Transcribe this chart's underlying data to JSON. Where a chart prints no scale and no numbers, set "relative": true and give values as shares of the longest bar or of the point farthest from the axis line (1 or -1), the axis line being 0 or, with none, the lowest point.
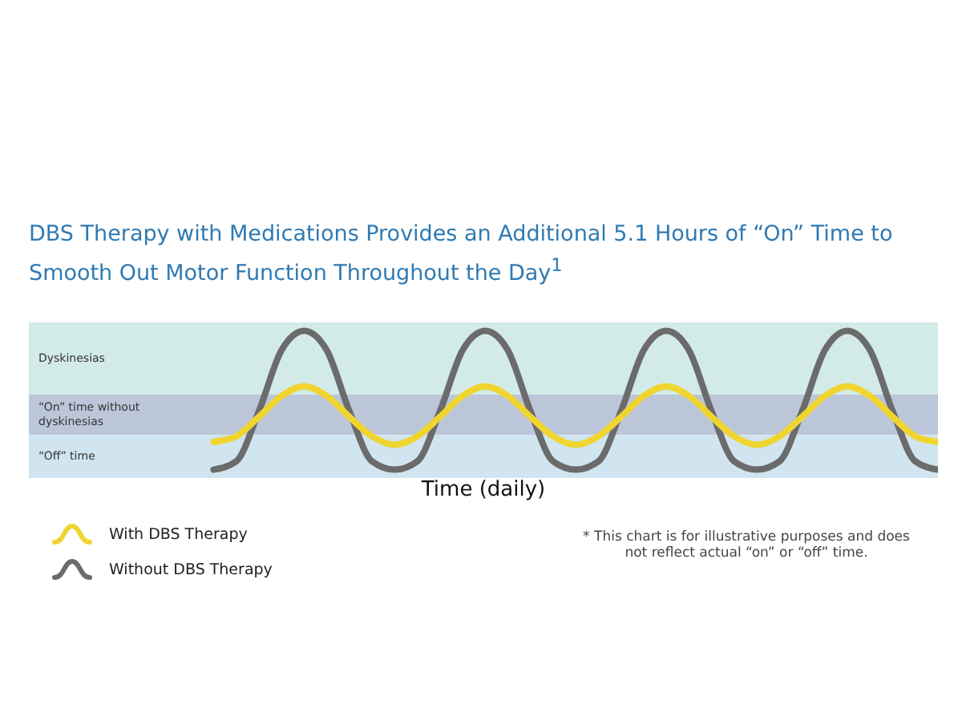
{
  "chart_data": {
    "type": "line",
    "title": "DBS Therapy with Medications Provides an Additional 5.1 Hours of “On” Time to Smooth Out Motor Function Throughout the Day$^{1}$",
    "xlabel": "Time (daily)",
    "relative": true,
    "legend": "bottom left",
    "marker": "none",
    "grid": false,
    "categories": [
      null,
      null,
      null,
      null,
      null,
      null,
      null,
      null,
      null,
      null,
      null,
      null,
      null,
      null,
      null,
      null,
      null,
      null,
      null,
      null,
      null,
      null,
      null,
      null,
      null,
      null,
      null,
      null,
      null,
      null,
      null,
      null,
      null
    ],
    "series": [
      {
        "name": "Without DBS Therapy",
        "color": "#6b6b6b",
        "values": [
          0,
          0.06,
          0.42,
          0.86,
          1,
          0.86,
          0.42,
          0.06,
          0,
          0.06,
          0.42,
          0.86,
          1,
          0.86,
          0.42,
          0.06,
          0,
          0.06,
          0.42,
          0.86,
          1,
          0.86,
          0.42,
          0.06,
          0,
          0.06,
          0.42,
          0.86,
          1,
          0.86,
          0.42,
          0.06,
          0
        ]
      },
      {
        "name": "With DBS Therapy",
        "color": "#f0d530",
        "values": [
          0.2,
          0.24,
          0.38,
          0.53,
          0.6,
          0.53,
          0.38,
          0.24,
          0.18,
          0.24,
          0.38,
          0.53,
          0.6,
          0.53,
          0.38,
          0.24,
          0.18,
          0.24,
          0.38,
          0.53,
          0.6,
          0.53,
          0.38,
          0.24,
          0.18,
          0.24,
          0.38,
          0.53,
          0.6,
          0.53,
          0.38,
          0.24,
          0.2
        ]
      }
    ],
    "bands": [
      {
        "axis": "y",
        "from": 0.54,
        "to": 1.06,
        "label": "Dyskinesias",
        "color": "#d3ebe8"
      },
      {
        "axis": "y",
        "from": 0.25,
        "to": 0.54,
        "label": "“On” time without dyskinesias",
        "color": "#bcc6d9"
      },
      {
        "axis": "y",
        "from": -0.06,
        "to": 0.25,
        "label": "“Off” time",
        "color": "#d0e5ef"
      }
    ],
    "annotations": [
      "* This chart is for illustrative purposes and does not reflect actual “on” or “off” time."
    ]
  }
}
